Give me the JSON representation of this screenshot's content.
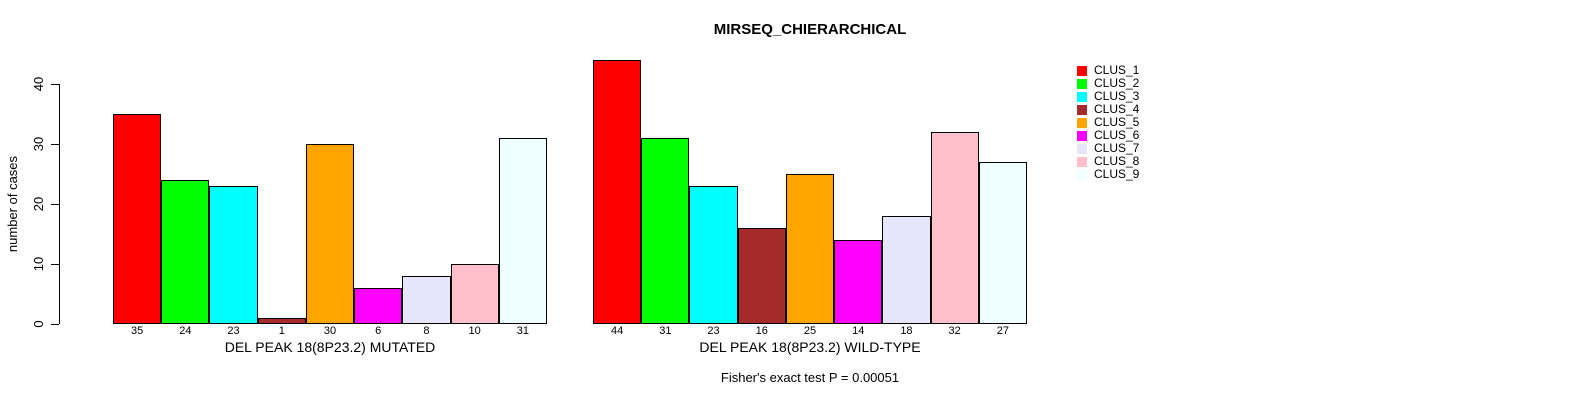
{
  "chart_data": {
    "type": "bar",
    "title": "MIRSEQ_CHIERARCHICAL",
    "ylabel": "number of cases",
    "ylim": [
      0,
      44
    ],
    "yticks": [
      0,
      10,
      20,
      30,
      40
    ],
    "grid": false,
    "legend_position": "right",
    "clusters": [
      {
        "label": "CLUS_1",
        "color": "#FF0000"
      },
      {
        "label": "CLUS_2",
        "color": "#00FF00"
      },
      {
        "label": "CLUS_3",
        "color": "#00FFFF"
      },
      {
        "label": "CLUS_4",
        "color": "#A52A2A"
      },
      {
        "label": "CLUS_5",
        "color": "#FFA500"
      },
      {
        "label": "CLUS_6",
        "color": "#FF00FF"
      },
      {
        "label": "CLUS_7",
        "color": "#E6E6FA"
      },
      {
        "label": "CLUS_8",
        "color": "#FFC0CB"
      },
      {
        "label": "CLUS_9",
        "color": "#F0FFFF"
      }
    ],
    "panels": [
      {
        "xlabel": "DEL PEAK 18(8P23.2) MUTATED",
        "categories": [
          "CLUS_1",
          "CLUS_2",
          "CLUS_3",
          "CLUS_4",
          "CLUS_5",
          "CLUS_6",
          "CLUS_7",
          "CLUS_8",
          "CLUS_9"
        ],
        "values": [
          35,
          24,
          23,
          1,
          30,
          6,
          8,
          10,
          31
        ]
      },
      {
        "xlabel": "DEL PEAK 18(8P23.2) WILD-TYPE",
        "categories": [
          "CLUS_1",
          "CLUS_2",
          "CLUS_3",
          "CLUS_4",
          "CLUS_5",
          "CLUS_6",
          "CLUS_7",
          "CLUS_8",
          "CLUS_9"
        ],
        "values": [
          44,
          31,
          23,
          16,
          25,
          14,
          18,
          32,
          27
        ]
      }
    ],
    "annotation": "Fisher's exact test P = 0.00051"
  }
}
